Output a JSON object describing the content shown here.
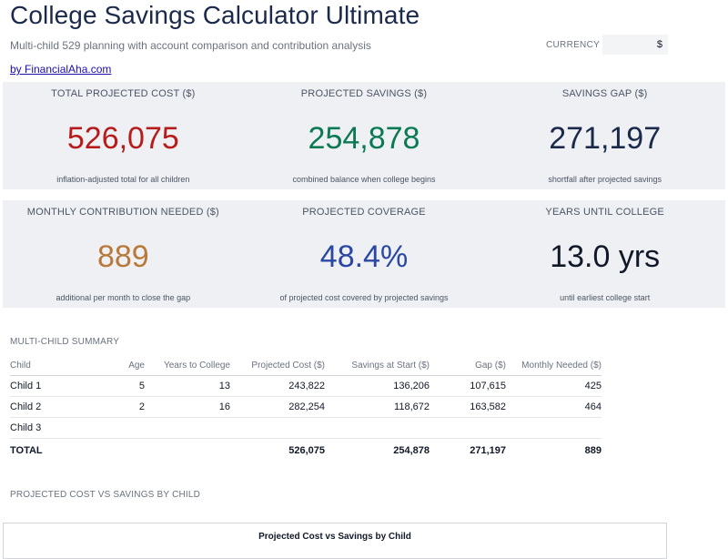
{
  "header": {
    "title": "College Savings Calculator Ultimate",
    "subtitle": "Multi-child 529 planning with account comparison and contribution analysis",
    "byline": "by FinancialAha.com",
    "currency_label": "CURRENCY",
    "currency_value": "$"
  },
  "metrics": [
    {
      "label": "TOTAL PROJECTED COST ($)",
      "value": "526,075",
      "note": "inflation-adjusted total for all children",
      "color": "#b71c1c"
    },
    {
      "label": "PROJECTED SAVINGS ($)",
      "value": "254,878",
      "note": "combined balance when college begins",
      "color": "#0b7a52"
    },
    {
      "label": "SAVINGS GAP ($)",
      "value": "271,197",
      "note": "shortfall after projected savings",
      "color": "#1b2a4a"
    },
    {
      "label": "MONTHLY CONTRIBUTION NEEDED ($)",
      "value": "889",
      "note": "additional per month to close the gap",
      "color": "#b8793a"
    },
    {
      "label": "PROJECTED COVERAGE",
      "value": "48.4%",
      "note": "of projected cost covered by projected savings",
      "color": "#2a47a3"
    },
    {
      "label": "YEARS UNTIL COLLEGE",
      "value": "13.0 yrs",
      "note": "until earliest college start",
      "color": "#111827"
    }
  ],
  "summary": {
    "section_label": "MULTI-CHILD SUMMARY",
    "columns": [
      "Child",
      "Age",
      "Years to College",
      "Projected Cost ($)",
      "Savings at Start ($)",
      "Gap ($)",
      "Monthly Needed ($)"
    ],
    "rows": [
      [
        "Child 1",
        "5",
        "13",
        "243,822",
        "136,206",
        "107,615",
        "425"
      ],
      [
        "Child 2",
        "2",
        "16",
        "282,254",
        "118,672",
        "163,582",
        "464"
      ],
      [
        "Child 3",
        "",
        "",
        "",
        "",
        "",
        ""
      ]
    ],
    "total": [
      "TOTAL",
      "",
      "",
      "526,075",
      "254,878",
      "271,197",
      "889"
    ]
  },
  "chart_section": {
    "section_label": "PROJECTED COST VS SAVINGS BY CHILD",
    "chart_title": "Projected Cost vs Savings by Child"
  }
}
